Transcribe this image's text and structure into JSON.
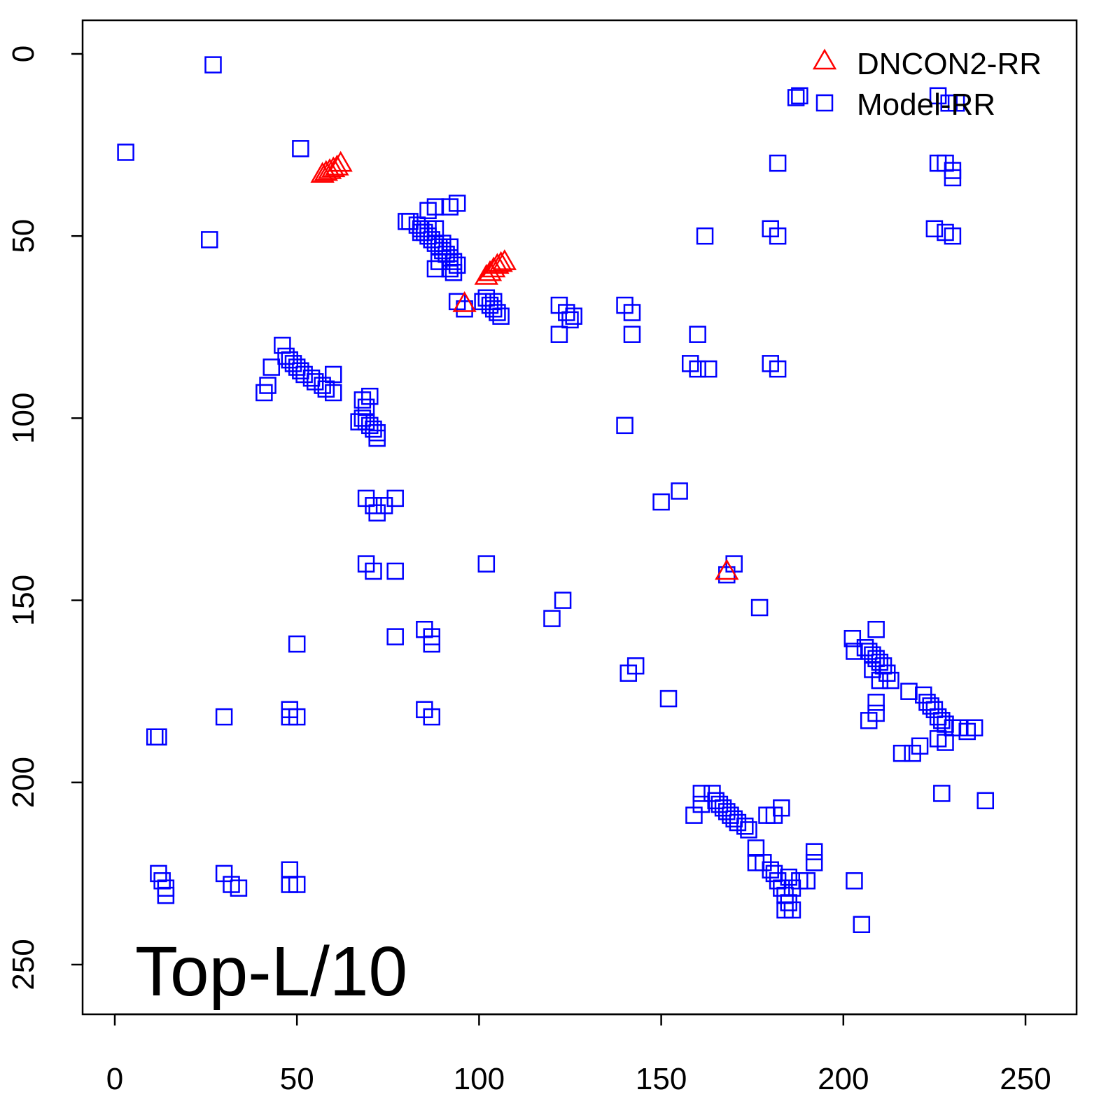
{
  "chart_data": {
    "type": "scatter",
    "title": "",
    "xlabel": "",
    "ylabel": "",
    "xlim": [
      -9,
      264
    ],
    "ylim": [
      -9,
      264
    ],
    "y_inverted": true,
    "xticks": [
      0,
      50,
      100,
      150,
      200,
      250
    ],
    "yticks": [
      0,
      50,
      100,
      150,
      200,
      250
    ],
    "annotation": "Top-L/10",
    "legend_position": "top-right",
    "series": [
      {
        "name": "DNCON2-RR",
        "marker": "triangle",
        "color": "#ff0000",
        "points": [
          [
            57,
            33
          ],
          [
            58,
            32.5
          ],
          [
            59,
            32
          ],
          [
            60,
            31.5
          ],
          [
            61,
            31
          ],
          [
            62,
            30
          ],
          [
            102,
            61
          ],
          [
            103,
            60
          ],
          [
            104,
            59
          ],
          [
            105,
            58
          ],
          [
            106,
            57.5
          ],
          [
            107,
            57
          ],
          [
            96,
            68.5
          ],
          [
            168,
            142
          ]
        ]
      },
      {
        "name": "Model-RR",
        "marker": "square",
        "color": "#0000ff",
        "points": [
          [
            27,
            3
          ],
          [
            3,
            27
          ],
          [
            51,
            26
          ],
          [
            26,
            51
          ],
          [
            80,
            46
          ],
          [
            81,
            46
          ],
          [
            92,
            42
          ],
          [
            94,
            41
          ],
          [
            88,
            42
          ],
          [
            86,
            43
          ],
          [
            83,
            47
          ],
          [
            84,
            48
          ],
          [
            85,
            49
          ],
          [
            86,
            50
          ],
          [
            87,
            51
          ],
          [
            88,
            52
          ],
          [
            89,
            53
          ],
          [
            90,
            54
          ],
          [
            91,
            55
          ],
          [
            92,
            56
          ],
          [
            93,
            57
          ],
          [
            94,
            58
          ],
          [
            92,
            59
          ],
          [
            88,
            59
          ],
          [
            84,
            49
          ],
          [
            86,
            48
          ],
          [
            88,
            48
          ],
          [
            90,
            52
          ],
          [
            92,
            53
          ],
          [
            93,
            60
          ],
          [
            89,
            57
          ],
          [
            94,
            68
          ],
          [
            96,
            70
          ],
          [
            101,
            68
          ],
          [
            102,
            67
          ],
          [
            103,
            69
          ],
          [
            104,
            70
          ],
          [
            105,
            71
          ],
          [
            106,
            72
          ],
          [
            104,
            68
          ],
          [
            122,
            69
          ],
          [
            124,
            71
          ],
          [
            126,
            72
          ],
          [
            122,
            77
          ],
          [
            125,
            73
          ],
          [
            140,
            69
          ],
          [
            142,
            71
          ],
          [
            142,
            77
          ],
          [
            162,
            50
          ],
          [
            182,
            30
          ],
          [
            180,
            48
          ],
          [
            182,
            50
          ],
          [
            188,
            11.5
          ],
          [
            187,
            12
          ],
          [
            226,
            11.5
          ],
          [
            229,
            13.5
          ],
          [
            231,
            13.5
          ],
          [
            226,
            30
          ],
          [
            228,
            30
          ],
          [
            230,
            32
          ],
          [
            230,
            34
          ],
          [
            225,
            48
          ],
          [
            228,
            49
          ],
          [
            230,
            50
          ],
          [
            160,
            77
          ],
          [
            158,
            85
          ],
          [
            160,
            86.5
          ],
          [
            163,
            86.5
          ],
          [
            180,
            85
          ],
          [
            182,
            86.5
          ],
          [
            46,
            80
          ],
          [
            47,
            83
          ],
          [
            48,
            84
          ],
          [
            49,
            85
          ],
          [
            50,
            86
          ],
          [
            51,
            87
          ],
          [
            52,
            88
          ],
          [
            54,
            89
          ],
          [
            55,
            90
          ],
          [
            57,
            91
          ],
          [
            58,
            92
          ],
          [
            60,
            93
          ],
          [
            41,
            93
          ],
          [
            42,
            91
          ],
          [
            43,
            86
          ],
          [
            60,
            88
          ],
          [
            68,
            95
          ],
          [
            69,
            97
          ],
          [
            70,
            94
          ],
          [
            68,
            100
          ],
          [
            69,
            101
          ],
          [
            70,
            102
          ],
          [
            71,
            103
          ],
          [
            72,
            104
          ],
          [
            72,
            105.5
          ],
          [
            67,
            101
          ],
          [
            69,
            122
          ],
          [
            71,
            124
          ],
          [
            72,
            126
          ],
          [
            74,
            124
          ],
          [
            77,
            122
          ],
          [
            69,
            140
          ],
          [
            71,
            142
          ],
          [
            77,
            142
          ],
          [
            102,
            140
          ],
          [
            140,
            102
          ],
          [
            150,
            123
          ],
          [
            155,
            120
          ],
          [
            170,
            140
          ],
          [
            168,
            143
          ],
          [
            177,
            152
          ],
          [
            123,
            150
          ],
          [
            120,
            155
          ],
          [
            77,
            160
          ],
          [
            85,
            158
          ],
          [
            87,
            160
          ],
          [
            87,
            162
          ],
          [
            50,
            162
          ],
          [
            143,
            168
          ],
          [
            141,
            170
          ],
          [
            152,
            177
          ],
          [
            85,
            180
          ],
          [
            87,
            182
          ],
          [
            30,
            182
          ],
          [
            48,
            180
          ],
          [
            50,
            182
          ],
          [
            48,
            182
          ],
          [
            12,
            187.5
          ],
          [
            11,
            187.5
          ],
          [
            202.5,
            160.5
          ],
          [
            203,
            164
          ],
          [
            209,
            158
          ],
          [
            206,
            163
          ],
          [
            207,
            164
          ],
          [
            208,
            165
          ],
          [
            209,
            166
          ],
          [
            210,
            167
          ],
          [
            211,
            168
          ],
          [
            212,
            170
          ],
          [
            213,
            172
          ],
          [
            210,
            172
          ],
          [
            208,
            169
          ],
          [
            209,
            178
          ],
          [
            209,
            181
          ],
          [
            207,
            183
          ],
          [
            218,
            175
          ],
          [
            222,
            176
          ],
          [
            223,
            178
          ],
          [
            224,
            179
          ],
          [
            225,
            180
          ],
          [
            226,
            182
          ],
          [
            227,
            183
          ],
          [
            228,
            184
          ],
          [
            230,
            185
          ],
          [
            232,
            185
          ],
          [
            234,
            186
          ],
          [
            236,
            185
          ],
          [
            226,
            188
          ],
          [
            228,
            189
          ],
          [
            216,
            192
          ],
          [
            219,
            192
          ],
          [
            221,
            190
          ],
          [
            227,
            203
          ],
          [
            239,
            205
          ],
          [
            203,
            227
          ],
          [
            205,
            239
          ],
          [
            159,
            209
          ],
          [
            161,
            203
          ],
          [
            161,
            206
          ],
          [
            164,
            203
          ],
          [
            165,
            205
          ],
          [
            166,
            206
          ],
          [
            167,
            207
          ],
          [
            168,
            208
          ],
          [
            169,
            209
          ],
          [
            170,
            210
          ],
          [
            171,
            211
          ],
          [
            173,
            212
          ],
          [
            174,
            213
          ],
          [
            176,
            218
          ],
          [
            176,
            222
          ],
          [
            178,
            222
          ],
          [
            180,
            224
          ],
          [
            181,
            225
          ],
          [
            182,
            227
          ],
          [
            183,
            229
          ],
          [
            184,
            231
          ],
          [
            185,
            233
          ],
          [
            186,
            235
          ],
          [
            184,
            235
          ],
          [
            186,
            229
          ],
          [
            188,
            227
          ],
          [
            190,
            227
          ],
          [
            192,
            222
          ],
          [
            192,
            219
          ],
          [
            185,
            226
          ],
          [
            179,
            209
          ],
          [
            181,
            209
          ],
          [
            183,
            207
          ],
          [
            12,
            225
          ],
          [
            13,
            227
          ],
          [
            14,
            229
          ],
          [
            14,
            231
          ],
          [
            30,
            225
          ],
          [
            32,
            228
          ],
          [
            34,
            229
          ],
          [
            48,
            224
          ],
          [
            50,
            228
          ],
          [
            48,
            228
          ]
        ]
      }
    ]
  }
}
